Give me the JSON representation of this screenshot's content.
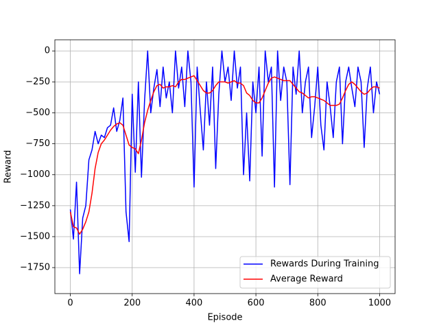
{
  "chart_data": {
    "type": "line",
    "x_label": "Episode",
    "y_label": "Reward",
    "x": [
      0,
      10,
      20,
      30,
      40,
      50,
      60,
      70,
      80,
      90,
      100,
      110,
      120,
      130,
      140,
      150,
      160,
      170,
      180,
      190,
      200,
      210,
      220,
      230,
      240,
      250,
      260,
      270,
      280,
      290,
      300,
      310,
      320,
      330,
      340,
      350,
      360,
      370,
      380,
      390,
      400,
      410,
      420,
      430,
      440,
      450,
      460,
      470,
      480,
      490,
      500,
      510,
      520,
      530,
      540,
      550,
      560,
      570,
      580,
      590,
      600,
      610,
      620,
      630,
      640,
      650,
      660,
      670,
      680,
      690,
      700,
      710,
      720,
      730,
      740,
      750,
      760,
      770,
      780,
      790,
      800,
      810,
      820,
      830,
      840,
      850,
      860,
      870,
      880,
      890,
      900,
      910,
      920,
      930,
      940,
      950,
      960,
      970,
      980,
      990,
      1000
    ],
    "series": [
      {
        "name": "Rewards During Training",
        "color": "#0000ff",
        "values": [
          -1280,
          -1520,
          -1060,
          -1800,
          -1350,
          -1250,
          -880,
          -800,
          -650,
          -750,
          -680,
          -700,
          -620,
          -600,
          -460,
          -650,
          -560,
          -380,
          -1300,
          -1540,
          -350,
          -980,
          -250,
          -1020,
          -400,
          0,
          -500,
          -300,
          -150,
          -450,
          -130,
          -380,
          -250,
          -500,
          0,
          -300,
          -130,
          -450,
          0,
          -250,
          -1100,
          -130,
          -480,
          -800,
          -250,
          -600,
          -130,
          -950,
          -350,
          0,
          -250,
          -130,
          -400,
          0,
          -300,
          -130,
          -1000,
          -500,
          -1050,
          -250,
          -500,
          -130,
          -850,
          0,
          -250,
          -130,
          -1100,
          0,
          -400,
          -130,
          -250,
          -1080,
          -130,
          -350,
          0,
          -500,
          -250,
          -130,
          -700,
          -450,
          -130,
          -600,
          -800,
          -250,
          -450,
          -700,
          -250,
          -130,
          -750,
          -250,
          -130,
          -300,
          -450,
          -130,
          -250,
          -780,
          -300,
          -130,
          -500,
          -250,
          -350
        ]
      },
      {
        "name": "Average Reward",
        "color": "#ff0000",
        "values": [
          -1300,
          -1420,
          -1430,
          -1480,
          -1440,
          -1380,
          -1300,
          -1150,
          -950,
          -820,
          -750,
          -720,
          -680,
          -640,
          -610,
          -590,
          -580,
          -600,
          -680,
          -760,
          -780,
          -790,
          -830,
          -720,
          -580,
          -480,
          -400,
          -330,
          -280,
          -270,
          -300,
          -290,
          -290,
          -280,
          -290,
          -250,
          -230,
          -230,
          -220,
          -210,
          -200,
          -240,
          -280,
          -320,
          -340,
          -340,
          -320,
          -280,
          -250,
          -250,
          -250,
          -260,
          -250,
          -240,
          -260,
          -260,
          -280,
          -340,
          -360,
          -400,
          -420,
          -420,
          -380,
          -320,
          -260,
          -220,
          -210,
          -220,
          -230,
          -240,
          -240,
          -240,
          -270,
          -300,
          -330,
          -340,
          -360,
          -380,
          -370,
          -370,
          -380,
          -390,
          -400,
          -420,
          -440,
          -440,
          -440,
          -430,
          -380,
          -320,
          -270,
          -250,
          -270,
          -300,
          -330,
          -350,
          -340,
          -310,
          -290,
          -290,
          -300
        ]
      }
    ],
    "xlim": [
      -50,
      1050
    ],
    "ylim": [
      -1960,
      90
    ],
    "xticks": [
      0,
      200,
      400,
      600,
      800,
      1000
    ],
    "yticks": [
      {
        "value": -1750,
        "label": "−1750"
      },
      {
        "value": -1500,
        "label": "−1500"
      },
      {
        "value": -1250,
        "label": "−1250"
      },
      {
        "value": -1000,
        "label": "−1000"
      },
      {
        "value": -750,
        "label": "−750"
      },
      {
        "value": -500,
        "label": "−500"
      },
      {
        "value": -250,
        "label": "−250"
      },
      0
    ],
    "grid": true,
    "legend": "lower right"
  }
}
